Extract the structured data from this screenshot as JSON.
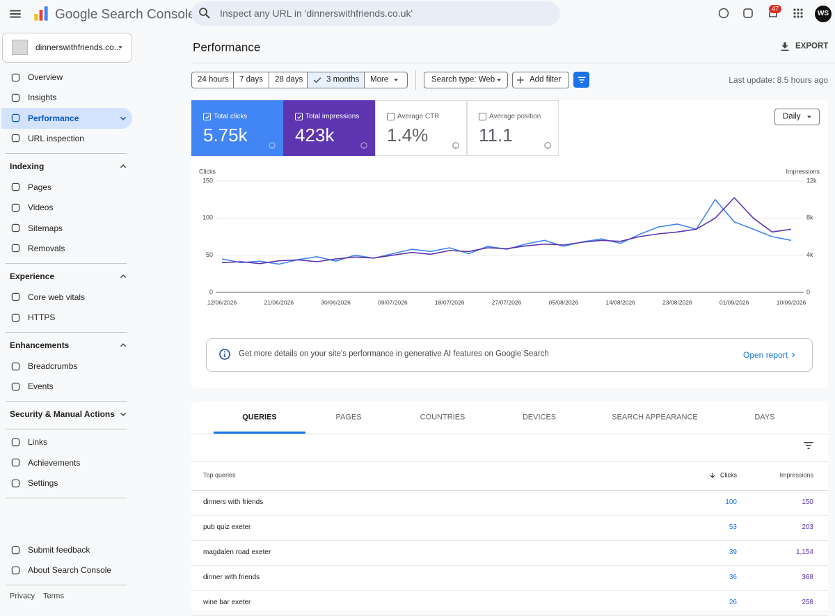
{
  "header": {
    "product": "Google Search Console",
    "search_placeholder": "Inspect any URL in 'dinnerswithfriends.co.uk'",
    "notifications": "47",
    "avatar": "WS"
  },
  "property": "dinnerswithfriends.co...",
  "sidebar": {
    "top": [
      "Overview",
      "Insights",
      "Performance",
      "URL inspection"
    ],
    "selected": 2,
    "sections": [
      {
        "title": "Indexing",
        "items": [
          "Pages",
          "Videos",
          "Sitemaps",
          "Removals"
        ]
      },
      {
        "title": "Experience",
        "items": [
          "Core web vitals",
          "HTTPS"
        ]
      },
      {
        "title": "Enhancements",
        "items": [
          "Breadcrumbs",
          "Events"
        ]
      },
      {
        "title": "Security & Manual Actions",
        "items": []
      }
    ],
    "bottom": [
      "Links",
      "Achievements",
      "Settings"
    ],
    "footer_links": [
      "Submit feedback",
      "About Search Console"
    ],
    "legal": [
      "Privacy",
      "Terms"
    ]
  },
  "page": {
    "title": "Performance",
    "export": "EXPORT",
    "ranges": [
      "24 hours",
      "7 days",
      "28 days",
      "3 months",
      "More"
    ],
    "selected_range": 3,
    "search_type": "Search type: Web",
    "add_filter": "Add filter",
    "last_update": "Last update: 8.5 hours ago",
    "granularity": "Daily"
  },
  "metrics": [
    {
      "label": "Total clicks",
      "value": "5.75k",
      "checked": true,
      "color": "#4285f4"
    },
    {
      "label": "Total impressions",
      "value": "423k",
      "checked": true,
      "color": "#5e35b1"
    },
    {
      "label": "Average CTR",
      "value": "1.4%",
      "checked": false,
      "color": "#00897b"
    },
    {
      "label": "Average position",
      "value": "11.1",
      "checked": false,
      "color": "#e8710a"
    }
  ],
  "chart_data": {
    "type": "line",
    "y_label": "Clicks",
    "y2_label": "Impressions",
    "categories": [
      "12/06/2026",
      null,
      null,
      "21/06/2026",
      null,
      null,
      "30/06/2026",
      null,
      null,
      "09/07/2026",
      null,
      null,
      "18/07/2026",
      null,
      null,
      "27/07/2026",
      null,
      null,
      "05/08/2026",
      null,
      null,
      "14/08/2026",
      null,
      null,
      "23/08/2026",
      null,
      null,
      "01/09/2026",
      null,
      null,
      "10/09/2026"
    ],
    "series": [
      {
        "name": "Clicks",
        "color": "#4285f4",
        "axis": "y",
        "values": [
          45,
          40,
          42,
          38,
          44,
          48,
          42,
          50,
          46,
          52,
          58,
          55,
          60,
          52,
          62,
          58,
          65,
          70,
          62,
          68,
          72,
          66,
          78,
          88,
          92,
          85,
          125,
          95,
          85,
          75,
          70
        ]
      },
      {
        "name": "Impressions",
        "axis": "y2",
        "color": "#5e35b1",
        "values": [
          3200,
          3300,
          3100,
          3400,
          3500,
          3300,
          3600,
          3800,
          3700,
          4000,
          4300,
          4100,
          4500,
          4400,
          4800,
          4700,
          5000,
          5200,
          5100,
          5400,
          5600,
          5500,
          6000,
          6300,
          6500,
          6800,
          8000,
          10200,
          8000,
          6500,
          6800
        ]
      }
    ],
    "ylim": [
      0,
      150
    ],
    "yticks": [
      0,
      50,
      100,
      150
    ],
    "y2lim": [
      0,
      12000
    ],
    "y2ticks": [
      0,
      {
        "value": 4000,
        "label": "4k"
      },
      {
        "value": 8000,
        "label": "8k"
      },
      {
        "value": 12000,
        "label": "12k"
      }
    ],
    "grid": true
  },
  "banner": {
    "text": "Get more details on your site's performance in generative AI features on Google Search",
    "link": "Open report"
  },
  "tabs": [
    "QUERIES",
    "PAGES",
    "COUNTRIES",
    "DEVICES",
    "SEARCH APPEARANCE",
    "DAYS"
  ],
  "selected_tab": 0,
  "table": {
    "headers": [
      "Top queries",
      "Clicks",
      "Impressions"
    ],
    "rows": [
      [
        "dinners with friends",
        "100",
        "150"
      ],
      [
        "pub quiz exeter",
        "53",
        "203"
      ],
      [
        "magdalen road exeter",
        "39",
        "1,154"
      ],
      [
        "dinner with friends",
        "36",
        "368"
      ],
      [
        "wine bar exeter",
        "26",
        "258"
      ]
    ]
  }
}
